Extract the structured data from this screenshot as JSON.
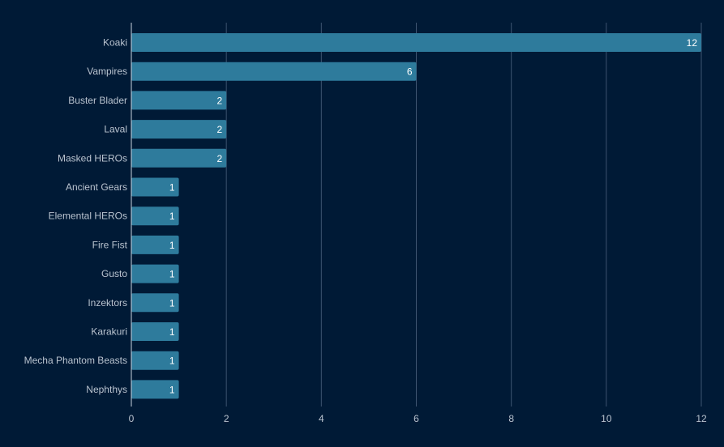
{
  "chart_data": {
    "type": "bar",
    "orientation": "horizontal",
    "title": "",
    "xlabel": "",
    "ylabel": "",
    "categories": [
      "Koaki",
      "Vampires",
      "Buster Blader",
      "Laval",
      "Masked HEROs",
      "Ancient Gears",
      "Elemental HEROs",
      "Fire Fist",
      "Gusto",
      "Inzektors",
      "Karakuri",
      "Mecha Phantom Beasts",
      "Nephthys"
    ],
    "values": [
      12,
      6,
      2,
      2,
      2,
      1,
      1,
      1,
      1,
      1,
      1,
      1,
      1
    ],
    "xlim": [
      0,
      12
    ],
    "xticks": [
      0,
      2,
      4,
      6,
      8,
      10,
      12
    ],
    "grid": true,
    "data_labels": true,
    "colors": {
      "background": "#001a36",
      "bar": "#2e7b9c",
      "grid": "#3d5470",
      "axis": "#c9d3de",
      "text": "#b9c3cf",
      "data_label": "#ffffff"
    }
  }
}
